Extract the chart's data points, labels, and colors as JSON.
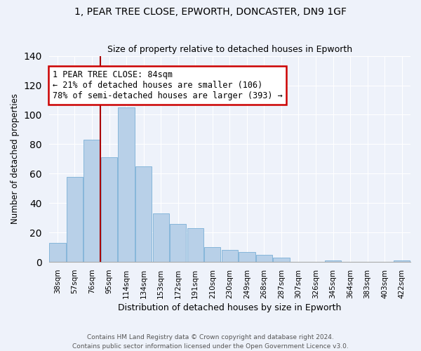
{
  "title1": "1, PEAR TREE CLOSE, EPWORTH, DONCASTER, DN9 1GF",
  "title2": "Size of property relative to detached houses in Epworth",
  "xlabel": "Distribution of detached houses by size in Epworth",
  "ylabel": "Number of detached properties",
  "bar_labels": [
    "38sqm",
    "57sqm",
    "76sqm",
    "95sqm",
    "114sqm",
    "134sqm",
    "153sqm",
    "172sqm",
    "191sqm",
    "210sqm",
    "230sqm",
    "249sqm",
    "268sqm",
    "287sqm",
    "307sqm",
    "326sqm",
    "345sqm",
    "364sqm",
    "383sqm",
    "403sqm",
    "422sqm"
  ],
  "bar_values": [
    13,
    58,
    83,
    71,
    105,
    65,
    33,
    26,
    23,
    10,
    8,
    7,
    5,
    3,
    0,
    0,
    1,
    0,
    0,
    0,
    1
  ],
  "bar_color": "#b8d0e8",
  "bar_edge_color": "#7aafd6",
  "annotation_text": "1 PEAR TREE CLOSE: 84sqm\n← 21% of detached houses are smaller (106)\n78% of semi-detached houses are larger (393) →",
  "annotation_box_color": "#ffffff",
  "annotation_box_edge": "#cc0000",
  "property_line_color": "#aa0000",
  "ylim": [
    0,
    140
  ],
  "yticks": [
    0,
    20,
    40,
    60,
    80,
    100,
    120,
    140
  ],
  "footer1": "Contains HM Land Registry data © Crown copyright and database right 2024.",
  "footer2": "Contains public sector information licensed under the Open Government Licence v3.0.",
  "bg_color": "#eef2fa",
  "grid_color": "#ffffff",
  "title_fontsize": 10,
  "subtitle_fontsize": 9
}
